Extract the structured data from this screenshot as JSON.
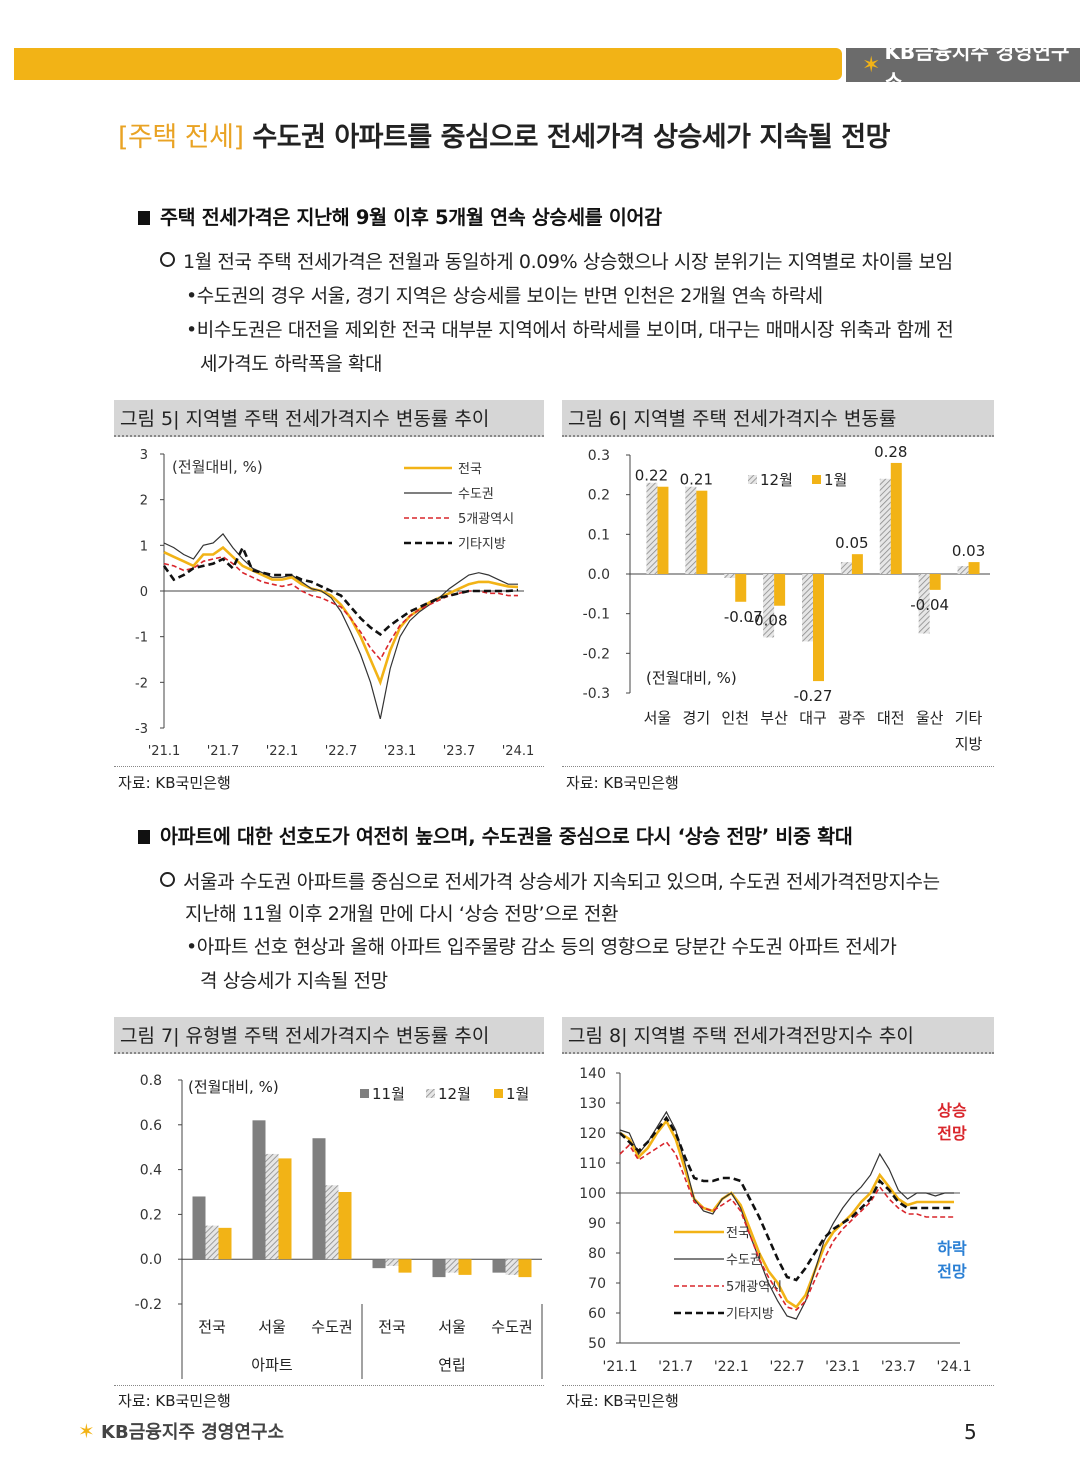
{
  "header": {
    "brand": "KB금융지주 경영연구소"
  },
  "title": {
    "tag": "[주택 전세]",
    "text": "수도권 아파트를 중심으로 전세가격 상승세가 지속될 전망"
  },
  "section1": {
    "heading": "주택 전세가격은 지난해 9월 이후 5개월 연속 상승세를 이어감",
    "point": "1월 전국 주택 전세가격은 전월과 동일하게 0.09% 상승했으나 시장 분위기는 지역별로 차이를 보임",
    "bullets": [
      "•수도권의 경우 서울, 경기 지역은 상승세를 보이는 반면 인천은 2개월 연속 하락세",
      "•비수도권은 대전을 제외한 전국 대부분 지역에서 하락세를 보이며, 대구는 매매시장 위축과 함께 전",
      "세가격도 하락폭을 확대"
    ]
  },
  "section2": {
    "heading": "아파트에 대한 선호도가 여전히 높으며, 수도권을 중심으로 다시 ‘상승 전망’ 비중 확대",
    "point_line1": "서울과 수도권 아파트를 중심으로 전세가격 상승세가 지속되고 있으며, 수도권 전세가격전망지수는",
    "point_line2": "지난해 11월 이후 2개월 만에 다시 ‘상승 전망’으로 전환",
    "bullet_line1": "•아파트 선호 현상과 올해 아파트 입주물량 감소 등의 영향으로 당분간 수도권 아파트 전세가",
    "bullet_line2": "격 상승세가 지속될 전망"
  },
  "figures": {
    "fig5_title": "그림 5| 지역별 주택 전세가격지수 변동률 추이",
    "fig6_title": "그림 6| 지역별 주택 전세가격지수 변동률",
    "fig7_title": "그림 7| 유형별 주택 전세가격지수 변동률 추이",
    "fig8_title": "그림 8| 지역별 주택 전세가격전망지수 추이",
    "source": "자료: KB국민은행"
  },
  "footer": {
    "brand": "KB금융지주 경영연구소",
    "page": "5"
  },
  "colors": {
    "accent": "#f2b316",
    "gray_bar": "#7f7f7f",
    "red_dash": "#d9262c",
    "up_label": "#d9262c",
    "down_label": "#2a7fd4"
  },
  "chart_data": [
    {
      "type": "line",
      "unit_label": "(전월대비, %)",
      "ylim": [
        -3,
        3
      ],
      "yticks": [
        3,
        2,
        1,
        0,
        -1,
        -2,
        -3
      ],
      "xticks": [
        "'21.1",
        "'21.7",
        "'22.1",
        "'22.7",
        "'23.1",
        "'23.7",
        "'24.1"
      ],
      "x_count": 37,
      "series": [
        {
          "name": "전국",
          "color": "#f2b316",
          "style": "solid",
          "values": [
            0.85,
            0.75,
            0.65,
            0.55,
            0.8,
            0.8,
            0.95,
            0.75,
            0.55,
            0.45,
            0.35,
            0.25,
            0.25,
            0.3,
            0.15,
            0.05,
            0.0,
            -0.1,
            -0.3,
            -0.6,
            -1.0,
            -1.5,
            -2.0,
            -1.3,
            -0.8,
            -0.55,
            -0.4,
            -0.25,
            -0.15,
            -0.05,
            0.05,
            0.15,
            0.2,
            0.2,
            0.15,
            0.1,
            0.09
          ]
        },
        {
          "name": "수도권",
          "color": "#333333",
          "style": "thin",
          "values": [
            1.05,
            0.95,
            0.8,
            0.7,
            1.0,
            1.05,
            1.25,
            0.95,
            0.7,
            0.5,
            0.4,
            0.3,
            0.3,
            0.35,
            0.2,
            0.05,
            0.0,
            -0.15,
            -0.45,
            -0.9,
            -1.4,
            -2.0,
            -2.8,
            -1.7,
            -1.0,
            -0.65,
            -0.45,
            -0.3,
            -0.15,
            0.05,
            0.2,
            0.35,
            0.4,
            0.35,
            0.25,
            0.15,
            0.15
          ]
        },
        {
          "name": "5개광역시",
          "color": "#d9262c",
          "style": "dash",
          "values": [
            0.6,
            0.55,
            0.45,
            0.5,
            0.65,
            0.7,
            0.75,
            0.6,
            0.4,
            0.3,
            0.2,
            0.15,
            0.1,
            0.15,
            0.0,
            -0.1,
            -0.15,
            -0.25,
            -0.35,
            -0.6,
            -0.9,
            -1.25,
            -1.5,
            -1.1,
            -0.75,
            -0.55,
            -0.4,
            -0.3,
            -0.2,
            -0.1,
            -0.05,
            0.0,
            0.0,
            -0.05,
            -0.05,
            -0.1,
            -0.1
          ]
        },
        {
          "name": "기타지방",
          "color": "#111111",
          "style": "bolddash",
          "values": [
            0.55,
            0.25,
            0.35,
            0.5,
            0.55,
            0.6,
            0.7,
            0.5,
            0.95,
            0.45,
            0.4,
            0.35,
            0.35,
            0.35,
            0.25,
            0.2,
            0.1,
            0.0,
            -0.1,
            -0.35,
            -0.6,
            -0.8,
            -0.95,
            -0.75,
            -0.6,
            -0.45,
            -0.35,
            -0.25,
            -0.15,
            -0.1,
            -0.05,
            0.0,
            0.0,
            0.0,
            0.0,
            0.0,
            0.02
          ]
        }
      ]
    },
    {
      "type": "bar",
      "unit_label": "(전월대비, %)",
      "categories": [
        "서울",
        "경기",
        "인천",
        "부산",
        "대구",
        "광주",
        "대전",
        "울산",
        "기타"
      ],
      "category_line2": [
        "",
        "",
        "",
        "",
        "",
        "",
        "",
        "",
        "지방"
      ],
      "ylim": [
        -0.3,
        0.3
      ],
      "yticks": [
        "0.3",
        "0.2",
        "0.1",
        "0.0",
        "-0.1",
        "-0.2",
        "-0.3"
      ],
      "series": [
        {
          "name": "12월",
          "values": [
            0.23,
            0.22,
            -0.01,
            -0.16,
            -0.17,
            0.03,
            0.24,
            -0.15,
            0.02
          ]
        },
        {
          "name": "1월",
          "values": [
            0.22,
            0.21,
            -0.07,
            -0.08,
            -0.27,
            0.05,
            0.28,
            -0.04,
            0.03
          ]
        }
      ],
      "value_labels": [
        "0.22",
        "0.21",
        "-0.07",
        "-0.08",
        "-0.27",
        "0.05",
        "0.28",
        "-0.04",
        "0.03"
      ]
    },
    {
      "type": "bar",
      "unit_label": "(전월대비, %)",
      "categories": [
        "전국",
        "서울",
        "수도권",
        "전국",
        "서울",
        "수도권"
      ],
      "groups": [
        "아파트",
        "연립"
      ],
      "ylim": [
        -0.2,
        0.8
      ],
      "yticks": [
        "0.8",
        "0.6",
        "0.4",
        "0.2",
        "0.0",
        "-0.2"
      ],
      "series": [
        {
          "name": "11월",
          "values": [
            0.28,
            0.62,
            0.54,
            -0.04,
            -0.08,
            -0.06
          ]
        },
        {
          "name": "12월",
          "values": [
            0.15,
            0.47,
            0.33,
            -0.03,
            -0.06,
            -0.07
          ]
        },
        {
          "name": "1월",
          "values": [
            0.14,
            0.45,
            0.3,
            -0.06,
            -0.07,
            -0.08
          ]
        }
      ]
    },
    {
      "type": "line",
      "ylim": [
        50,
        140
      ],
      "yticks": [
        140,
        130,
        120,
        110,
        100,
        90,
        80,
        70,
        60,
        50
      ],
      "xticks": [
        "'21.1",
        "'21.7",
        "'22.1",
        "'22.7",
        "'23.1",
        "'23.7",
        "'24.1"
      ],
      "x_count": 37,
      "up_label": [
        "상승",
        "전망"
      ],
      "down_label": [
        "하락",
        "전망"
      ],
      "series": [
        {
          "name": "전국",
          "color": "#f2b316",
          "style": "solid",
          "values": [
            120,
            118,
            112,
            115,
            120,
            124,
            118,
            108,
            98,
            95,
            94,
            98,
            100,
            96,
            88,
            80,
            74,
            70,
            64,
            62,
            66,
            74,
            82,
            87,
            90,
            93,
            97,
            100,
            106,
            102,
            98,
            96,
            97,
            97,
            97,
            97,
            97
          ]
        },
        {
          "name": "수도권",
          "color": "#333333",
          "style": "thin",
          "values": [
            121,
            120,
            113,
            117,
            122,
            127,
            121,
            110,
            98,
            94,
            93,
            98,
            100,
            95,
            86,
            78,
            70,
            64,
            59,
            58,
            64,
            74,
            84,
            90,
            95,
            99,
            102,
            106,
            113,
            108,
            101,
            98,
            100,
            100,
            99,
            100,
            100
          ]
        },
        {
          "name": "5개광역시",
          "color": "#d9262c",
          "style": "dash",
          "values": [
            113,
            116,
            111,
            113,
            115,
            117,
            113,
            105,
            97,
            95,
            94,
            96,
            98,
            94,
            86,
            78,
            72,
            67,
            62,
            61,
            64,
            71,
            78,
            84,
            88,
            91,
            94,
            97,
            102,
            98,
            95,
            93,
            93,
            92,
            92,
            92,
            92
          ]
        },
        {
          "name": "기타지방",
          "color": "#111111",
          "style": "bolddash",
          "values": [
            120,
            117,
            114,
            117,
            121,
            125,
            120,
            112,
            105,
            104,
            104,
            105,
            105,
            104,
            98,
            92,
            85,
            78,
            72,
            71,
            75,
            80,
            85,
            88,
            90,
            92,
            95,
            98,
            104,
            101,
            97,
            95,
            95,
            95,
            95,
            95,
            95
          ]
        }
      ]
    }
  ]
}
